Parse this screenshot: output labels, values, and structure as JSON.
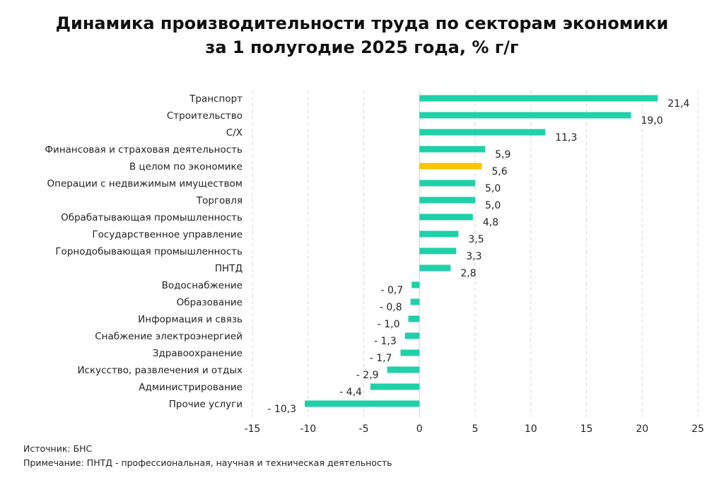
{
  "chart_data": {
    "type": "bar",
    "orientation": "horizontal",
    "title_line1": "Динамика производительности труда по секторам экономики",
    "title_line2": "за 1 полугодие 2025 года, % г/г",
    "categories": [
      "Транспорт",
      "Строительство",
      "С/Х",
      "Финансовая и страховая деятельность",
      "В целом по экономике",
      "Операции с недвижимым имуществом",
      "Торговля",
      "Обрабатывающая промышленность",
      "Государственное управление",
      "Горнодобывающая промышленность",
      "ПНТД",
      "Водоснабжение",
      "Образование",
      "Информация и связь",
      "Снабжение электроэнергией",
      "Здравоохранение",
      "Искусство, развлечения и отдых",
      "Администрирование",
      "Прочие услуги"
    ],
    "values": [
      21.4,
      19.0,
      11.3,
      5.9,
      5.6,
      5.0,
      5.0,
      4.8,
      3.5,
      3.3,
      2.8,
      -0.7,
      -0.8,
      -1.0,
      -1.3,
      -1.7,
      -2.9,
      -4.4,
      -10.3
    ],
    "data_labels": [
      "21,4",
      "19,0",
      "11,3",
      "5,9",
      "5,6",
      "5,0",
      "5,0",
      "4,8",
      "3,5",
      "3,3",
      "2,8",
      "- 0,7",
      "- 0,8",
      "- 1,0",
      "- 1,3",
      "- 1,7",
      "- 2,9",
      "- 4,4",
      "- 10,3"
    ],
    "highlight_category": "В целом по экономике",
    "xlim": [
      -15,
      25
    ],
    "x_ticks": [
      -15,
      -10,
      -5,
      0,
      5,
      10,
      15,
      20,
      25
    ],
    "x_tick_labels": [
      "-15",
      "-10",
      "-5",
      "0",
      "5",
      "10",
      "15",
      "20",
      "25"
    ],
    "grid": "vertical dashed",
    "colors": {
      "bar": "#1fd0a9",
      "highlight": "#f7c600",
      "grid": "#d9d9d9"
    }
  },
  "footer": {
    "source": "Источник: БНС",
    "note": "Примечание: ПНТД - профессиональная, научная и техническая деятельность"
  }
}
